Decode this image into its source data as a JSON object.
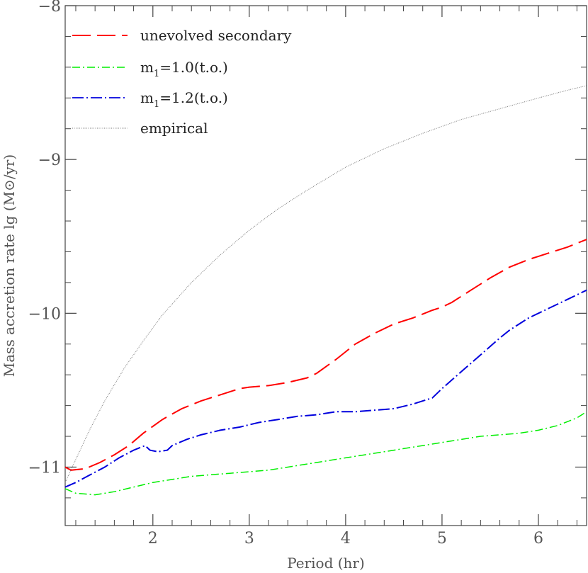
{
  "chart_data": {
    "type": "line",
    "title": "",
    "xlabel": "Period (hr)",
    "ylabel": "Mass accretion rate lg (M⊙/yr)",
    "xlim": [
      1.09,
      6.5
    ],
    "ylim": [
      -11.38,
      -8.0
    ],
    "xticks": [
      2,
      3,
      4,
      5,
      6
    ],
    "xtick_labels": [
      "2",
      "3",
      "4",
      "5",
      "6"
    ],
    "yticks": [
      -8,
      -9,
      -10,
      -11
    ],
    "ytick_labels": [
      "−8",
      "−9",
      "−10",
      "−11"
    ],
    "legend_position": "top-left",
    "grid": false,
    "series": [
      {
        "name": "unevolved secondary",
        "color": "#ff0000",
        "dash": "26,9",
        "x": [
          1.09,
          1.15,
          1.3,
          1.45,
          1.6,
          1.75,
          1.9,
          2.1,
          2.3,
          2.5,
          2.7,
          2.9,
          3.0,
          3.2,
          3.4,
          3.6,
          3.7,
          3.9,
          4.1,
          4.3,
          4.5,
          4.7,
          4.9,
          5.0,
          5.1,
          5.3,
          5.5,
          5.7,
          5.9,
          6.1,
          6.3,
          6.5
        ],
        "y": [
          -11.0,
          -11.02,
          -11.01,
          -10.97,
          -10.92,
          -10.86,
          -10.78,
          -10.69,
          -10.62,
          -10.57,
          -10.53,
          -10.49,
          -10.48,
          -10.47,
          -10.45,
          -10.42,
          -10.39,
          -10.3,
          -10.2,
          -10.13,
          -10.07,
          -10.03,
          -9.98,
          -9.96,
          -9.93,
          -9.85,
          -9.77,
          -9.7,
          -9.65,
          -9.61,
          -9.57,
          -9.52
        ]
      },
      {
        "name": "m1=1.0(t.o.)",
        "color": "#00ee00",
        "dash": "11,4,2,4",
        "x": [
          1.09,
          1.2,
          1.4,
          1.6,
          1.8,
          2.0,
          2.2,
          2.4,
          2.6,
          2.8,
          3.0,
          3.2,
          3.4,
          3.6,
          3.8,
          4.0,
          4.2,
          4.4,
          4.6,
          4.8,
          5.0,
          5.2,
          5.4,
          5.6,
          5.8,
          6.0,
          6.2,
          6.4,
          6.5
        ],
        "y": [
          -11.14,
          -11.17,
          -11.18,
          -11.16,
          -11.13,
          -11.1,
          -11.08,
          -11.06,
          -11.05,
          -11.04,
          -11.03,
          -11.02,
          -11.0,
          -10.98,
          -10.96,
          -10.94,
          -10.92,
          -10.9,
          -10.88,
          -10.86,
          -10.84,
          -10.82,
          -10.8,
          -10.79,
          -10.78,
          -10.76,
          -10.73,
          -10.68,
          -10.64
        ]
      },
      {
        "name": "m1=1.2(t.o.)",
        "color": "#0000dd",
        "dash": "16,4,2,4",
        "x": [
          1.09,
          1.2,
          1.35,
          1.5,
          1.65,
          1.8,
          1.92,
          1.97,
          2.05,
          2.15,
          2.2,
          2.35,
          2.5,
          2.7,
          2.9,
          3.1,
          3.3,
          3.5,
          3.7,
          3.9,
          4.1,
          4.3,
          4.5,
          4.7,
          4.9,
          5.0,
          5.2,
          5.4,
          5.6,
          5.7,
          5.9,
          6.1,
          6.3,
          6.5
        ],
        "y": [
          -11.13,
          -11.1,
          -11.05,
          -11.0,
          -10.94,
          -10.89,
          -10.86,
          -10.89,
          -10.9,
          -10.89,
          -10.86,
          -10.82,
          -10.79,
          -10.76,
          -10.74,
          -10.71,
          -10.69,
          -10.67,
          -10.66,
          -10.64,
          -10.64,
          -10.63,
          -10.62,
          -10.59,
          -10.55,
          -10.49,
          -10.38,
          -10.27,
          -10.16,
          -10.11,
          -10.03,
          -9.97,
          -9.91,
          -9.85
        ]
      },
      {
        "name": "empirical",
        "color": "#777777",
        "dash": "1,1.5",
        "x": [
          1.09,
          1.2,
          1.35,
          1.5,
          1.7,
          1.9,
          2.1,
          2.4,
          2.7,
          3.0,
          3.3,
          3.6,
          4.0,
          4.4,
          4.8,
          5.2,
          5.6,
          6.0,
          6.3,
          6.5
        ],
        "y": [
          -11.1,
          -10.95,
          -10.75,
          -10.57,
          -10.36,
          -10.18,
          -10.01,
          -9.8,
          -9.62,
          -9.46,
          -9.32,
          -9.2,
          -9.05,
          -8.93,
          -8.83,
          -8.74,
          -8.67,
          -8.6,
          -8.55,
          -8.52
        ]
      }
    ]
  },
  "legend": {
    "unevolved": "unevolved secondary",
    "m10_base": "m",
    "m10_sub": "1",
    "m10_rest": "=1.0(t.o.)",
    "m12_base": "m",
    "m12_sub": "1",
    "m12_rest": "=1.2(t.o.)",
    "empirical": "empirical"
  }
}
